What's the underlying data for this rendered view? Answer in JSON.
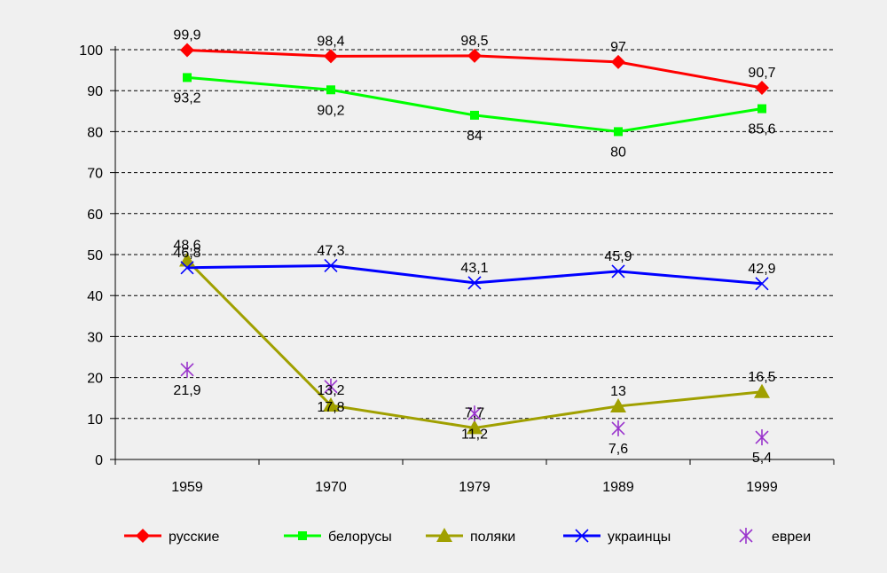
{
  "chart_data": {
    "type": "line",
    "categories": [
      "1959",
      "1970",
      "1979",
      "1989",
      "1999"
    ],
    "y_ticks": [
      "0",
      "10",
      "20",
      "30",
      "40",
      "50",
      "60",
      "70",
      "80",
      "90",
      "100"
    ],
    "ylim": [
      0,
      100
    ],
    "grid": "horizontal dashed",
    "legend_position": "bottom",
    "series": [
      {
        "name": "русские",
        "color": "#ff0000",
        "marker": "diamond",
        "line": true,
        "values": [
          99.9,
          98.4,
          98.5,
          97,
          90.7
        ],
        "labels": [
          "99,9",
          "98,4",
          "98,5",
          "97",
          "90,7"
        ],
        "label_pos": "above"
      },
      {
        "name": "белорусы",
        "color": "#00ff00",
        "marker": "square",
        "line": true,
        "values": [
          93.2,
          90.2,
          84,
          80,
          85.6
        ],
        "labels": [
          "93,2",
          "90,2",
          "84",
          "80",
          "85,6"
        ],
        "label_pos": "below"
      },
      {
        "name": "поляки",
        "color": "#a0a000",
        "marker": "triangle",
        "line": true,
        "values": [
          48.6,
          13.2,
          7.7,
          13,
          16.5
        ],
        "labels": [
          "48,6",
          "13,2",
          "7,7",
          "13",
          "16,5"
        ],
        "label_pos": "above"
      },
      {
        "name": "украинцы",
        "color": "#0000ff",
        "marker": "x",
        "line": true,
        "values": [
          46.8,
          47.3,
          43.1,
          45.9,
          42.9
        ],
        "labels": [
          "46,8",
          "47,3",
          "43,1",
          "45,9",
          "42,9"
        ],
        "label_pos": "above"
      },
      {
        "name": "евреи",
        "color": "#9933cc",
        "marker": "asterisk",
        "line": false,
        "values": [
          21.9,
          17.8,
          11.2,
          7.6,
          5.4
        ],
        "labels": [
          "21,9",
          "17,8",
          "11,2",
          "7,6",
          "5,4"
        ],
        "label_pos": "below"
      }
    ]
  }
}
